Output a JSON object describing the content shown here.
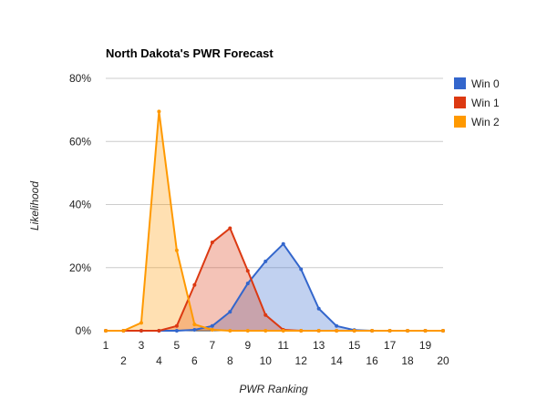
{
  "chart_data": {
    "type": "area",
    "title": "North Dakota's PWR Forecast",
    "xlabel": "PWR Ranking",
    "ylabel": "Likelihood",
    "x": [
      1,
      2,
      3,
      4,
      5,
      6,
      7,
      8,
      9,
      10,
      11,
      12,
      13,
      14,
      15,
      16,
      17,
      18,
      19,
      20
    ],
    "y_ticks": [
      "0%",
      "20%",
      "40%",
      "60%",
      "80%"
    ],
    "ylim": [
      0,
      80
    ],
    "y_unit": "%",
    "grid": true,
    "legend_position": "right",
    "series": [
      {
        "name": "Win 0",
        "color": "#3366cc",
        "values": [
          0,
          0,
          0,
          0,
          0,
          0.3,
          1.5,
          6,
          15,
          22,
          27.5,
          19.5,
          7,
          1.5,
          0.2,
          0,
          0,
          0,
          0,
          0
        ]
      },
      {
        "name": "Win 1",
        "color": "#dc3912",
        "values": [
          0,
          0,
          0,
          0,
          1.5,
          14.5,
          28,
          32.5,
          19,
          5,
          0.3,
          0,
          0,
          0,
          0,
          0,
          0,
          0,
          0,
          0
        ]
      },
      {
        "name": "Win 2",
        "color": "#ff9900",
        "values": [
          0,
          0,
          2.5,
          69.5,
          25.5,
          2,
          0.3,
          0,
          0,
          0,
          0,
          0,
          0,
          0,
          0,
          0,
          0,
          0,
          0,
          0
        ]
      }
    ]
  }
}
